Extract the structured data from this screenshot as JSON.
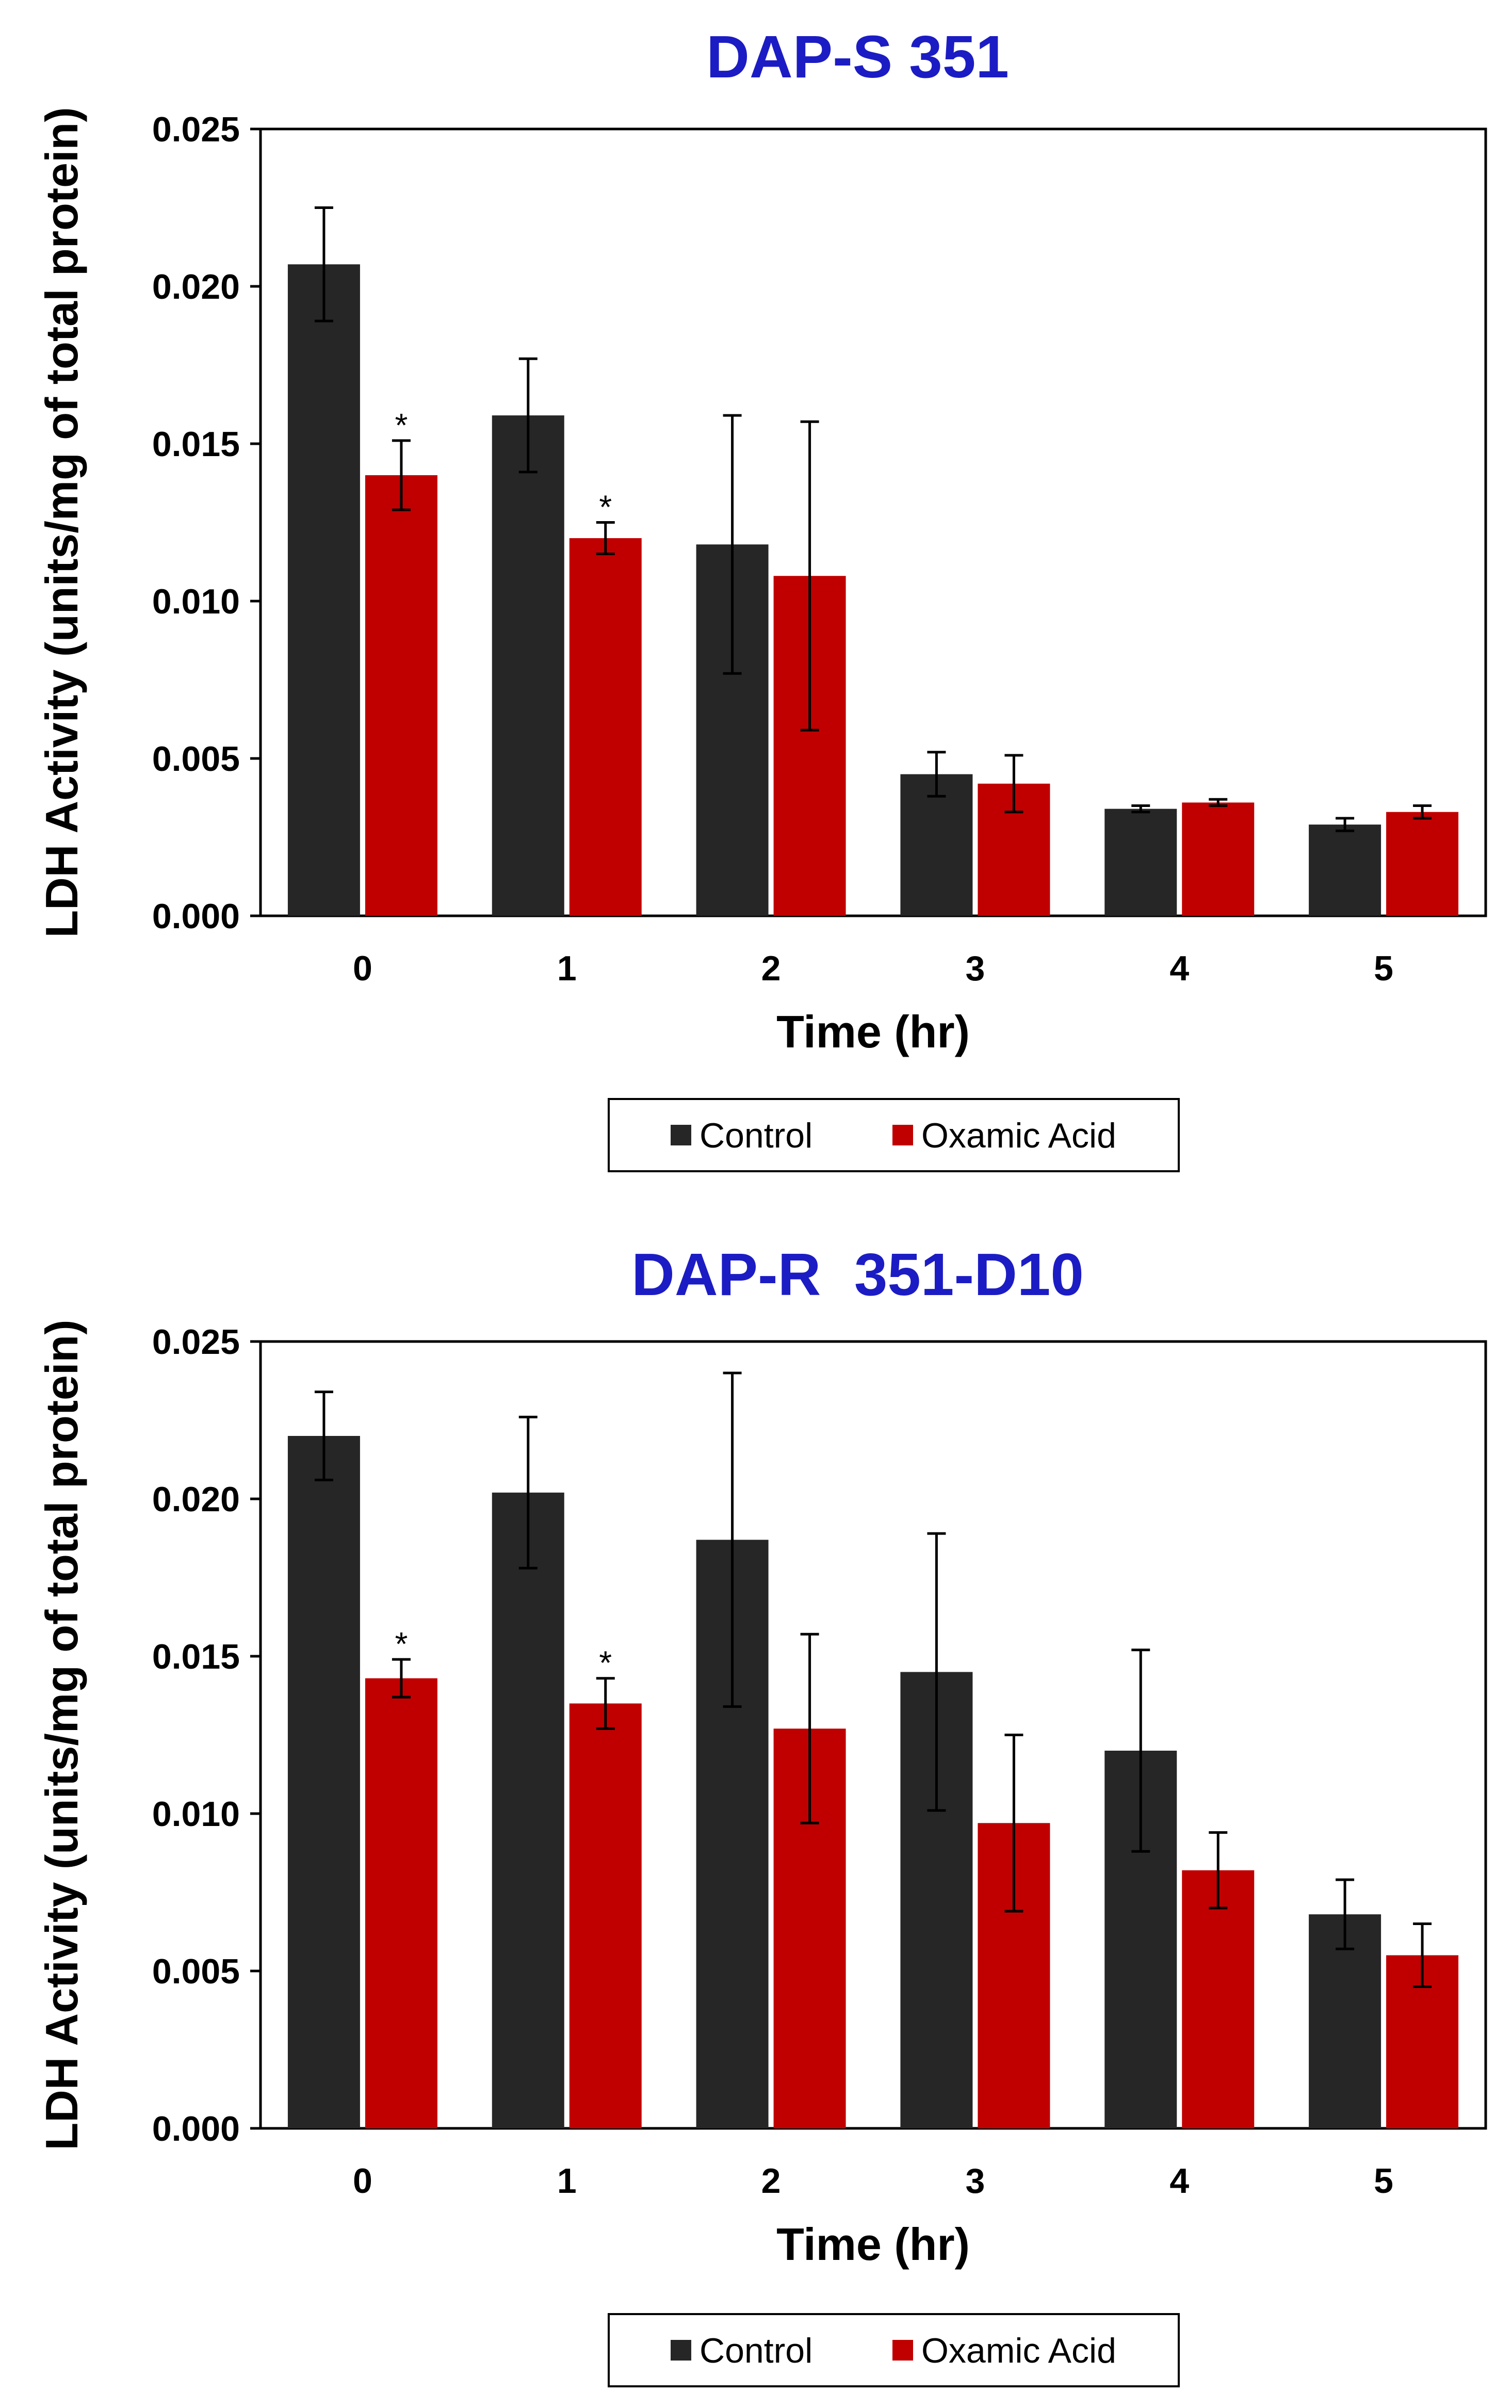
{
  "chart_data": [
    {
      "type": "bar",
      "title": "DAP-S 351",
      "xlabel": "Time (hr)",
      "ylabel": "LDH Activity (units/mg of total protein)",
      "categories": [
        "0",
        "1",
        "2",
        "3",
        "4",
        "5"
      ],
      "ylim": [
        0,
        0.025
      ],
      "yticks": [
        "0.000",
        "0.005",
        "0.010",
        "0.015",
        "0.020",
        "0.025"
      ],
      "series": [
        {
          "name": "Control",
          "color": "#262626",
          "values": [
            0.0207,
            0.0159,
            0.0118,
            0.0045,
            0.0034,
            0.0029
          ],
          "errors": [
            0.0018,
            0.0018,
            0.0041,
            0.0007,
            0.0001,
            0.0002
          ]
        },
        {
          "name": "Oxamic Acid",
          "color": "#c00000",
          "values": [
            0.014,
            0.012,
            0.0108,
            0.0042,
            0.0036,
            0.0033
          ],
          "errors": [
            0.0011,
            0.0005,
            0.0049,
            0.0009,
            0.0001,
            0.0002
          ],
          "significance": [
            "*",
            "*",
            "",
            "",
            "",
            ""
          ]
        }
      ],
      "legend": {
        "position": "bottom"
      },
      "grid": false
    },
    {
      "type": "bar",
      "title": "DAP-R  351-D10",
      "xlabel": "Time (hr)",
      "ylabel": "LDH Activity (units/mg of total protein)",
      "categories": [
        "0",
        "1",
        "2",
        "3",
        "4",
        "5"
      ],
      "ylim": [
        0,
        0.025
      ],
      "yticks": [
        "0.000",
        "0.005",
        "0.010",
        "0.015",
        "0.020",
        "0.025"
      ],
      "series": [
        {
          "name": "Control",
          "color": "#262626",
          "values": [
            0.022,
            0.0202,
            0.0187,
            0.0145,
            0.012,
            0.0068
          ],
          "errors": [
            0.0014,
            0.0024,
            0.0053,
            0.0044,
            0.0032,
            0.0011
          ]
        },
        {
          "name": "Oxamic Acid",
          "color": "#c00000",
          "values": [
            0.0143,
            0.0135,
            0.0127,
            0.0097,
            0.0082,
            0.0055
          ],
          "errors": [
            0.0006,
            0.0008,
            0.003,
            0.0028,
            0.0012,
            0.001
          ],
          "significance": [
            "*",
            "*",
            "",
            "",
            "",
            ""
          ]
        }
      ],
      "legend": {
        "position": "bottom"
      },
      "grid": false
    }
  ]
}
